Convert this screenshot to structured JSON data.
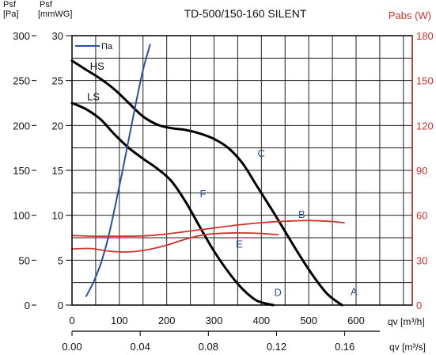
{
  "chart_data": {
    "type": "line",
    "title": "TD-500/150-160 SILENT",
    "axes": {
      "left_pa": {
        "label_line1": "Psf",
        "label_line2": "[Pa]",
        "ylim": [
          0,
          300
        ],
        "ticks": [
          "0",
          "50",
          "100",
          "150",
          "200",
          "250",
          "300"
        ]
      },
      "left_mmwg": {
        "label_line1": "Psf",
        "label_line2": "[mmWG]",
        "ticks": [
          "0",
          "5",
          "10",
          "15",
          "20",
          "25",
          "30"
        ]
      },
      "right_w": {
        "label": "Pabs (W)",
        "ylim": [
          0,
          180
        ],
        "ticks": [
          "0",
          "30",
          "60",
          "90",
          "120",
          "150",
          "180"
        ]
      },
      "bottom_m3h": {
        "label": "qv [m³/h]",
        "xlim": [
          0,
          600
        ],
        "ticks": [
          "0",
          "100",
          "200",
          "300",
          "400",
          "500",
          "600"
        ]
      },
      "bottom_m3s": {
        "label": "qv [m³/s]",
        "ticks": [
          "0.00",
          "0.04",
          "0.08",
          "0.12",
          "0.16"
        ]
      }
    },
    "grid": true,
    "legend": {
      "entry": "Πa",
      "placement": "top-left"
    },
    "series": [
      {
        "name": "HS",
        "axis": "pa",
        "color": "#000000",
        "x": [
          0,
          30,
          60,
          90,
          120,
          150,
          180,
          210,
          240,
          270,
          300,
          330,
          360,
          390,
          420,
          450,
          480,
          510,
          540,
          570
        ],
        "y": [
          272,
          262,
          252,
          240,
          225,
          210,
          201,
          197,
          195,
          191,
          185,
          175,
          158,
          133,
          108,
          82,
          56,
          32,
          12,
          0
        ]
      },
      {
        "name": "LS",
        "axis": "pa",
        "color": "#000000",
        "x": [
          0,
          30,
          60,
          90,
          120,
          150,
          180,
          210,
          240,
          270,
          300,
          330,
          360,
          390,
          425
        ],
        "y": [
          225,
          218,
          207,
          190,
          175,
          163,
          152,
          138,
          115,
          87,
          60,
          37,
          18,
          5,
          0
        ]
      },
      {
        "name": "Πa",
        "axis": "pa",
        "color": "#2c4fa0",
        "x": [
          30,
          45,
          60,
          75,
          90,
          105,
          120,
          135,
          150,
          165
        ],
        "y": [
          10,
          25,
          45,
          72,
          107,
          145,
          185,
          225,
          262,
          290
        ]
      },
      {
        "name": "",
        "axis": "w",
        "color": "#d0342c",
        "x": [
          0,
          50,
          100,
          150,
          200,
          250,
          300,
          350,
          400,
          450,
          500,
          550,
          575
        ],
        "y": [
          46.5,
          46,
          46,
          46.2,
          47.5,
          49.5,
          51.5,
          53.5,
          55,
          56,
          56.5,
          55.8,
          55
        ]
      },
      {
        "name": "",
        "axis": "w",
        "color": "#d0342c",
        "x": [
          0,
          40,
          80,
          120,
          160,
          200,
          240,
          280,
          320,
          360,
          400,
          435
        ],
        "y": [
          37.5,
          37.8,
          36,
          35.5,
          37,
          40,
          44,
          47,
          48,
          48.2,
          47.8,
          47
        ]
      }
    ],
    "annotations": [
      {
        "text": "HS",
        "x": 38,
        "y": 262
      },
      {
        "text": "LS",
        "x": 32,
        "y": 228
      },
      {
        "text": "C",
        "x": 392,
        "y": 165
      },
      {
        "text": "F",
        "x": 270,
        "y": 120
      },
      {
        "text": "B",
        "x": 478,
        "y": 97
      },
      {
        "text": "E",
        "x": 346,
        "y": 64
      },
      {
        "text": "D",
        "x": 427,
        "y": 10
      },
      {
        "text": "A",
        "x": 588,
        "y": 11
      }
    ]
  }
}
